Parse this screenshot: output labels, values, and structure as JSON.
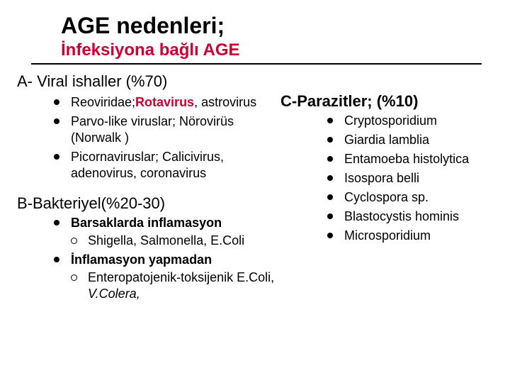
{
  "colors": {
    "accent": "#cc0033",
    "text": "#000000",
    "background": "#ffffff"
  },
  "title": "AGE nedenleri;",
  "subtitle": "İnfeksiyona bağlı AGE",
  "sectionA": {
    "heading": "A- Viral ishaller (%70)",
    "items": {
      "reo_pre": "Reoviridae;",
      "reo_bold": "Rotavirus",
      "reo_post": ", astrovirus",
      "parvo": "Parvo-like viruslar; Nörovirüs (Norwalk )",
      "picorna": "Picornaviruslar; Calicivirus, adenovirus, coronavirus"
    }
  },
  "sectionB": {
    "heading": "B-Bakteriyel(%20-30)",
    "item1_label": "Barsaklarda inflamasyon",
    "item1_sub": "Shigella, Salmonella, E.Coli",
    "item2_label": "İnflamasyon yapmadan",
    "item2_sub_pre": "Enteropatojenik-toksijenik E.Coli, ",
    "item2_sub_ital": "V.Colera,"
  },
  "sectionC": {
    "heading": "C-Parazitler; (%10)",
    "items": [
      "Cryptosporidium",
      "Giardia lamblia",
      "Entamoeba histolytica",
      "Isospora belli",
      "Cyclospora sp.",
      "Blastocystis hominis",
      "Microsporidium"
    ]
  }
}
